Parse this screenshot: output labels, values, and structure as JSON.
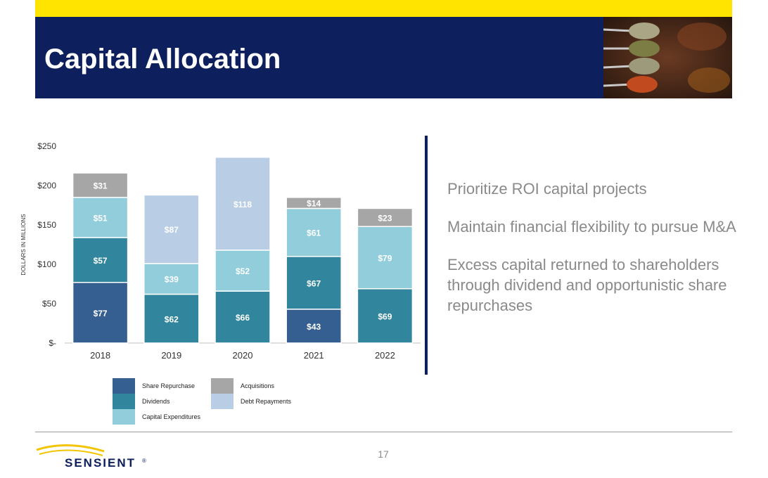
{
  "header": {
    "title": "Capital Allocation"
  },
  "colors": {
    "navy": "#0d1f5c",
    "yellow": "#ffe400",
    "share_repurchase": "#365f91",
    "dividends": "#31859c",
    "capital_expenditures": "#92cddc",
    "acquisitions": "#a6a6a6",
    "debt_repayments": "#b9cde5"
  },
  "chart_data": {
    "type": "bar",
    "stacked": true,
    "categories": [
      "2018",
      "2019",
      "2020",
      "2021",
      "2022"
    ],
    "ylabel": "DOLLARS IN MILLIONS",
    "ylim": [
      0,
      250
    ],
    "yticks": [
      {
        "value": 0,
        "label": "$-"
      },
      {
        "value": 50,
        "label": "$50"
      },
      {
        "value": 100,
        "label": "$100"
      },
      {
        "value": 150,
        "label": "$150"
      },
      {
        "value": 200,
        "label": "$200"
      },
      {
        "value": 250,
        "label": "$250"
      }
    ],
    "grid": false,
    "legend_position": "bottom",
    "series": [
      {
        "name": "Share Repurchase",
        "color": "#365f91",
        "values": [
          77,
          0,
          0,
          43,
          0
        ]
      },
      {
        "name": "Dividends",
        "color": "#31859c",
        "values": [
          57,
          62,
          66,
          67,
          69
        ]
      },
      {
        "name": "Capital Expenditures",
        "color": "#92cddc",
        "values": [
          51,
          39,
          52,
          61,
          79
        ]
      },
      {
        "name": "Acquisitions",
        "color": "#a6a6a6",
        "values": [
          31,
          0,
          0,
          14,
          23
        ]
      },
      {
        "name": "Debt Repayments",
        "color": "#b9cde5",
        "values": [
          0,
          87,
          118,
          0,
          0
        ]
      }
    ],
    "data_labels": {
      "Share Repurchase": [
        "$77",
        "",
        "",
        "$43",
        ""
      ],
      "Dividends": [
        "$57",
        "$62",
        "$66",
        "$67",
        "$69"
      ],
      "Capital Expenditures": [
        "$51",
        "$39",
        "$52",
        "$61",
        "$79"
      ],
      "Acquisitions": [
        "$31",
        "",
        "",
        "$14",
        "$23"
      ],
      "Debt Repayments": [
        "",
        "$87",
        "$118",
        "",
        ""
      ]
    }
  },
  "legend": {
    "items": [
      {
        "label": "Share Repurchase",
        "color": "#365f91"
      },
      {
        "label": "Dividends",
        "color": "#31859c"
      },
      {
        "label": "Capital Expenditures",
        "color": "#92cddc"
      },
      {
        "label": "Acquisitions",
        "color": "#a6a6a6"
      },
      {
        "label": "Debt Repayments",
        "color": "#b9cde5"
      }
    ]
  },
  "bullets": [
    "Prioritize ROI capital projects",
    "Maintain financial flexibility to pursue M&A",
    "Excess capital returned to shareholders through dividend and opportunistic share repurchases"
  ],
  "footer": {
    "page_number": "17",
    "logo_text": "SENSIENT",
    "logo_mark": "®"
  }
}
